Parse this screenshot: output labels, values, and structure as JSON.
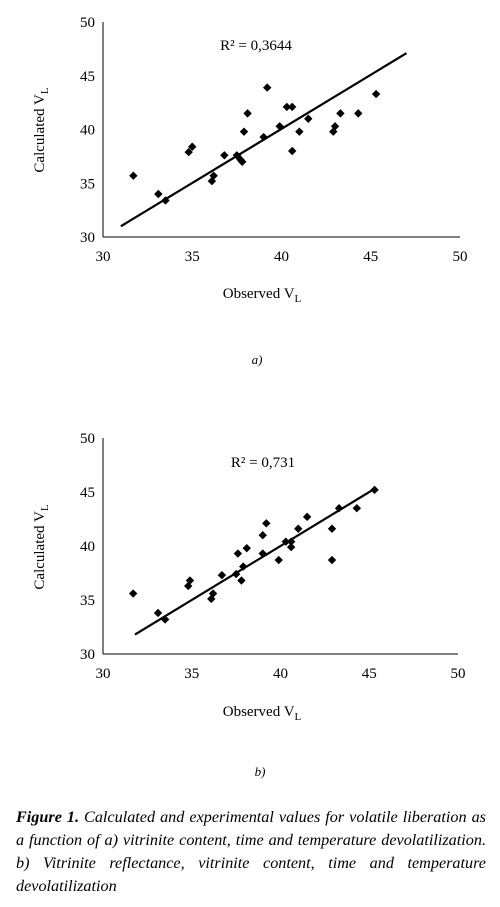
{
  "chart_data": [
    {
      "type": "scatter",
      "panel_label": "a)",
      "xlabel": "Observed V",
      "xlabel_sub": "L",
      "ylabel": "Calculated  V",
      "ylabel_sub": "L",
      "xlim": [
        30,
        50
      ],
      "ylim": [
        30,
        50
      ],
      "x_ticks": [
        "30",
        "35",
        "40",
        "45",
        "50"
      ],
      "y_ticks": [
        "30",
        "35",
        "40",
        "45",
        "50"
      ],
      "annotation": "R² = 0,3644",
      "trendline": {
        "x": [
          31,
          47
        ],
        "y": [
          31.0,
          47.1
        ]
      },
      "points": [
        [
          31.7,
          35.7
        ],
        [
          33.1,
          34.0
        ],
        [
          33.5,
          33.4
        ],
        [
          34.8,
          37.9
        ],
        [
          35.0,
          38.4
        ],
        [
          36.1,
          35.2
        ],
        [
          36.2,
          35.7
        ],
        [
          36.8,
          37.6
        ],
        [
          37.5,
          37.6
        ],
        [
          37.7,
          37.2
        ],
        [
          37.8,
          37.0
        ],
        [
          37.9,
          39.8
        ],
        [
          38.1,
          41.5
        ],
        [
          39.0,
          39.3
        ],
        [
          39.2,
          43.9
        ],
        [
          39.9,
          40.3
        ],
        [
          40.3,
          42.1
        ],
        [
          40.6,
          42.1
        ],
        [
          40.6,
          38.0
        ],
        [
          41.0,
          39.8
        ],
        [
          41.5,
          41.0
        ],
        [
          42.9,
          39.8
        ],
        [
          43.0,
          40.3
        ],
        [
          43.3,
          41.5
        ],
        [
          44.3,
          41.5
        ],
        [
          45.3,
          43.3
        ]
      ]
    },
    {
      "type": "scatter",
      "panel_label": "b)",
      "xlabel": "Observed V",
      "xlabel_sub": "L",
      "ylabel": "Calculated  V",
      "ylabel_sub": "L",
      "xlim": [
        30,
        50
      ],
      "ylim": [
        30,
        50
      ],
      "x_ticks": [
        "30",
        "35",
        "40",
        "45",
        "50"
      ],
      "y_ticks": [
        "30",
        "35",
        "40",
        "45",
        "50"
      ],
      "annotation": "R² = 0,731",
      "trendline": {
        "x": [
          31.8,
          45.3
        ],
        "y": [
          31.8,
          45.3
        ]
      },
      "points": [
        [
          31.7,
          35.6
        ],
        [
          33.1,
          33.8
        ],
        [
          33.5,
          33.2
        ],
        [
          34.8,
          36.3
        ],
        [
          34.9,
          36.8
        ],
        [
          36.1,
          35.1
        ],
        [
          36.2,
          35.6
        ],
        [
          36.7,
          37.3
        ],
        [
          37.5,
          37.4
        ],
        [
          37.6,
          39.3
        ],
        [
          37.8,
          36.8
        ],
        [
          37.9,
          38.1
        ],
        [
          38.1,
          39.8
        ],
        [
          39.0,
          39.3
        ],
        [
          39.0,
          41.0
        ],
        [
          39.2,
          42.1
        ],
        [
          39.9,
          38.7
        ],
        [
          40.3,
          40.4
        ],
        [
          40.6,
          39.9
        ],
        [
          40.6,
          40.4
        ],
        [
          41.0,
          41.6
        ],
        [
          41.5,
          42.7
        ],
        [
          42.9,
          38.7
        ],
        [
          42.9,
          41.6
        ],
        [
          43.3,
          43.5
        ],
        [
          44.3,
          43.5
        ],
        [
          45.3,
          45.2
        ]
      ]
    }
  ],
  "caption": {
    "label": "Figure 1.",
    "text": " Calculated and experimental values for volatile liberation as a function of  a) vitrinite content, time and temperature devolatilization. b) Vitrinite reflectance, vitrinite content, time and temperature devolatilization"
  }
}
